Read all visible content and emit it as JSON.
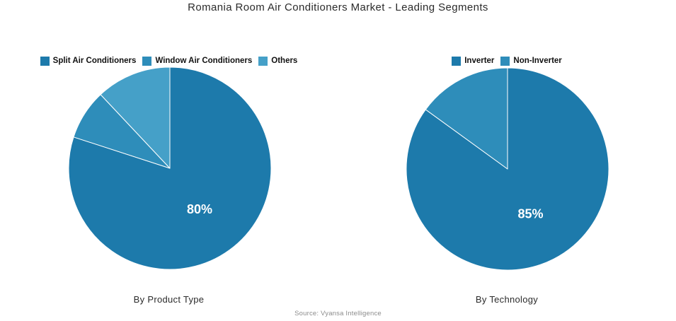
{
  "title": "Romania Room Air Conditioners Market - Leading Segments",
  "source": "Source: Vyansa Intelligence",
  "palette": {
    "dark_blue": "#1d7aab",
    "medium_blue": "#2e8dba",
    "light_blue": "#45a0c8"
  },
  "chart_data": [
    {
      "type": "pie",
      "title": "By Product Type",
      "legend_position": "top-center",
      "direction": "clockwise",
      "start_angle_deg": 0,
      "slices": [
        {
          "label": "Split Air Conditioners",
          "value": 80,
          "color": "#1d7aab",
          "data_label": "80%"
        },
        {
          "label": "Window Air Conditioners",
          "value": 8,
          "color": "#2e8dba",
          "data_label": ""
        },
        {
          "label": "Others",
          "value": 12,
          "color": "#45a0c8",
          "data_label": ""
        }
      ]
    },
    {
      "type": "pie",
      "title": "By Technology",
      "legend_position": "top-center",
      "direction": "clockwise",
      "start_angle_deg": 0,
      "slices": [
        {
          "label": "Inverter",
          "value": 85,
          "color": "#1d7aab",
          "data_label": "85%"
        },
        {
          "label": "Non-Inverter",
          "value": 15,
          "color": "#2e8dba",
          "data_label": ""
        }
      ]
    }
  ]
}
